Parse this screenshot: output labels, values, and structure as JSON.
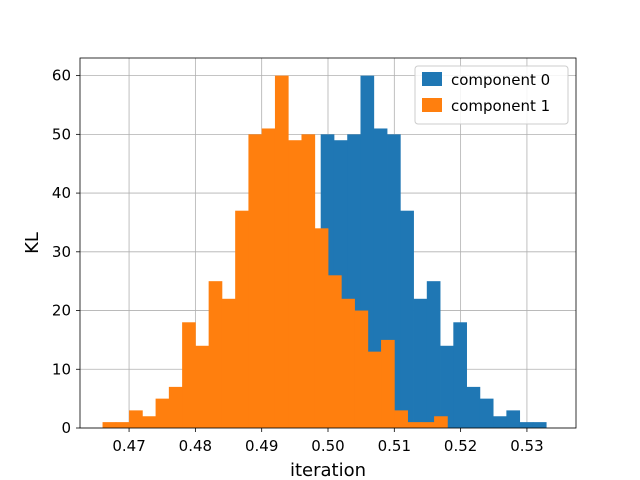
{
  "chart_data": {
    "type": "bar",
    "xlabel": "iteration",
    "ylabel": "KL",
    "xlim": [
      0.4626,
      0.5374
    ],
    "ylim": [
      0,
      63
    ],
    "grid": true,
    "legend_position": "top-right",
    "x_ticks": [
      0.47,
      0.48,
      0.49,
      0.5,
      0.51,
      0.52,
      0.53
    ],
    "x_tick_labels": [
      "0.47",
      "0.48",
      "0.49",
      "0.50",
      "0.51",
      "0.52",
      "0.53"
    ],
    "y_ticks": [
      0,
      10,
      20,
      30,
      40,
      50,
      60
    ],
    "y_tick_labels": [
      "0",
      "10",
      "20",
      "30",
      "40",
      "50",
      "60"
    ],
    "series": [
      {
        "name": "component 0",
        "color": "#1f77b4",
        "bin_start": 0.4969,
        "bin_width": 0.002,
        "values": [
          3,
          50,
          49,
          50,
          60,
          51,
          50,
          37,
          22,
          25,
          14,
          18,
          7,
          5,
          2,
          3,
          1,
          1
        ]
      },
      {
        "name": "component 1",
        "color": "#ff7f0e",
        "bin_start": 0.466,
        "bin_width": 0.002,
        "values": [
          1,
          1,
          3,
          2,
          5,
          7,
          18,
          14,
          25,
          22,
          37,
          50,
          51,
          60,
          49,
          50,
          34,
          26,
          22,
          20,
          13,
          15,
          3,
          1,
          1,
          2
        ]
      }
    ]
  }
}
